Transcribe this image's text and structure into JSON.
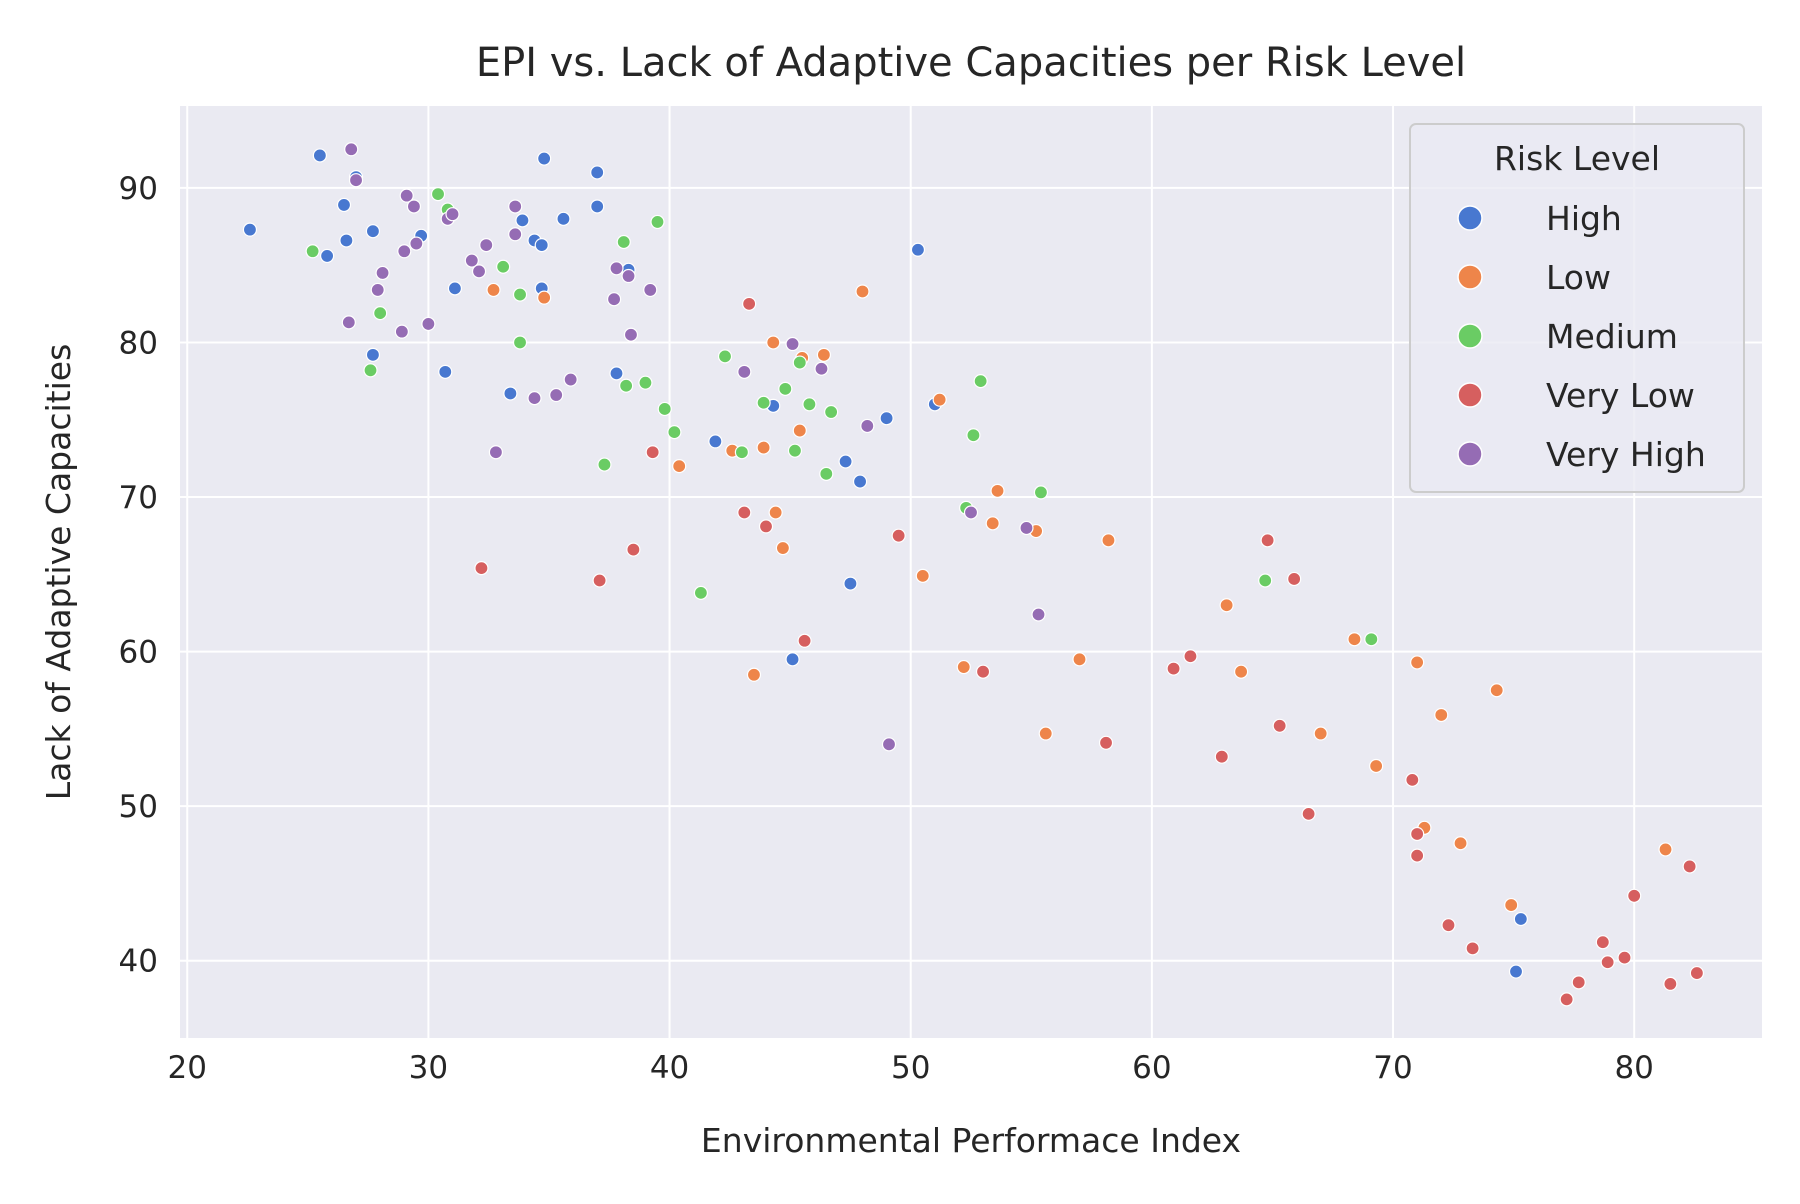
{
  "chart_data": {
    "type": "scatter",
    "title": "EPI vs. Lack of Adaptive Capacities per Risk Level",
    "xlabel": "Environmental Performace Index",
    "ylabel": "Lack of Adaptive Capacities",
    "xlim": [
      19.7,
      85.3
    ],
    "ylim": [
      35,
      95.3
    ],
    "xticks": [
      20,
      30,
      40,
      50,
      60,
      70,
      80
    ],
    "yticks": [
      40,
      50,
      60,
      70,
      80,
      90
    ],
    "grid": true,
    "legend": {
      "title": "Risk Level",
      "position": "top-right"
    },
    "series": [
      {
        "name": "High",
        "color": "#4878d0",
        "points": [
          [
            22.6,
            87.3
          ],
          [
            25.5,
            92.1
          ],
          [
            25.8,
            85.6
          ],
          [
            26.5,
            88.9
          ],
          [
            26.6,
            86.6
          ],
          [
            27.0,
            90.7
          ],
          [
            27.7,
            87.2
          ],
          [
            27.7,
            79.2
          ],
          [
            29.7,
            86.9
          ],
          [
            30.7,
            78.1
          ],
          [
            31.1,
            83.5
          ],
          [
            33.4,
            76.7
          ],
          [
            33.9,
            87.9
          ],
          [
            34.4,
            86.6
          ],
          [
            34.7,
            86.3
          ],
          [
            34.7,
            83.5
          ],
          [
            34.8,
            91.9
          ],
          [
            35.6,
            88.0
          ],
          [
            37.0,
            91.0
          ],
          [
            37.0,
            88.8
          ],
          [
            37.8,
            78.0
          ],
          [
            38.3,
            84.7
          ],
          [
            41.9,
            73.6
          ],
          [
            44.3,
            75.9
          ],
          [
            45.1,
            59.5
          ],
          [
            47.3,
            72.3
          ],
          [
            47.5,
            64.4
          ],
          [
            47.9,
            71.0
          ],
          [
            49.0,
            75.1
          ],
          [
            50.3,
            86.0
          ],
          [
            51.0,
            76.0
          ],
          [
            75.1,
            39.3
          ],
          [
            75.3,
            42.7
          ]
        ]
      },
      {
        "name": "Low",
        "color": "#ee854a",
        "points": [
          [
            32.7,
            83.4
          ],
          [
            34.8,
            82.9
          ],
          [
            40.4,
            72.0
          ],
          [
            42.6,
            73.0
          ],
          [
            43.5,
            58.5
          ],
          [
            43.9,
            73.2
          ],
          [
            44.3,
            80.0
          ],
          [
            44.4,
            69.0
          ],
          [
            44.7,
            66.7
          ],
          [
            45.4,
            74.3
          ],
          [
            45.5,
            79.0
          ],
          [
            46.4,
            79.2
          ],
          [
            48.0,
            83.3
          ],
          [
            50.5,
            64.9
          ],
          [
            51.2,
            76.3
          ],
          [
            52.2,
            59.0
          ],
          [
            53.4,
            68.3
          ],
          [
            53.6,
            70.4
          ],
          [
            55.2,
            67.8
          ],
          [
            55.6,
            54.7
          ],
          [
            57.0,
            59.5
          ],
          [
            58.2,
            67.2
          ],
          [
            63.1,
            63.0
          ],
          [
            63.7,
            58.7
          ],
          [
            67.0,
            54.7
          ],
          [
            68.4,
            60.8
          ],
          [
            69.3,
            52.6
          ],
          [
            71.0,
            59.3
          ],
          [
            71.3,
            48.6
          ],
          [
            72.0,
            55.9
          ],
          [
            72.8,
            47.6
          ],
          [
            74.3,
            57.5
          ],
          [
            74.9,
            43.6
          ],
          [
            81.3,
            47.2
          ]
        ]
      },
      {
        "name": "Medium",
        "color": "#6acc64",
        "points": [
          [
            25.2,
            85.9
          ],
          [
            27.6,
            78.2
          ],
          [
            28.0,
            81.9
          ],
          [
            30.4,
            89.6
          ],
          [
            30.8,
            88.6
          ],
          [
            33.1,
            84.9
          ],
          [
            33.8,
            80.0
          ],
          [
            33.8,
            83.1
          ],
          [
            37.3,
            72.1
          ],
          [
            38.1,
            86.5
          ],
          [
            38.2,
            77.2
          ],
          [
            39.0,
            77.4
          ],
          [
            39.5,
            87.8
          ],
          [
            39.8,
            75.7
          ],
          [
            40.2,
            74.2
          ],
          [
            41.3,
            63.8
          ],
          [
            42.3,
            79.1
          ],
          [
            43.0,
            72.9
          ],
          [
            43.9,
            76.1
          ],
          [
            44.8,
            77.0
          ],
          [
            45.2,
            73.0
          ],
          [
            45.4,
            78.7
          ],
          [
            45.8,
            76.0
          ],
          [
            46.5,
            71.5
          ],
          [
            46.7,
            75.5
          ],
          [
            52.3,
            69.3
          ],
          [
            52.6,
            74.0
          ],
          [
            52.9,
            77.5
          ],
          [
            55.4,
            70.3
          ],
          [
            64.7,
            64.6
          ],
          [
            69.1,
            60.8
          ]
        ]
      },
      {
        "name": "Very Low",
        "color": "#d65f5f",
        "points": [
          [
            32.2,
            65.4
          ],
          [
            37.1,
            64.6
          ],
          [
            38.5,
            66.6
          ],
          [
            39.3,
            72.9
          ],
          [
            43.1,
            69.0
          ],
          [
            43.3,
            82.5
          ],
          [
            44.0,
            68.1
          ],
          [
            45.6,
            60.7
          ],
          [
            49.5,
            67.5
          ],
          [
            53.0,
            58.7
          ],
          [
            58.1,
            54.1
          ],
          [
            60.9,
            58.9
          ],
          [
            61.6,
            59.7
          ],
          [
            62.9,
            53.2
          ],
          [
            64.8,
            67.2
          ],
          [
            65.3,
            55.2
          ],
          [
            65.9,
            64.7
          ],
          [
            66.5,
            49.5
          ],
          [
            70.8,
            51.7
          ],
          [
            71.0,
            48.2
          ],
          [
            71.0,
            46.8
          ],
          [
            72.3,
            42.3
          ],
          [
            73.3,
            40.8
          ],
          [
            77.2,
            37.5
          ],
          [
            77.7,
            38.6
          ],
          [
            78.7,
            41.2
          ],
          [
            78.9,
            39.9
          ],
          [
            79.6,
            40.2
          ],
          [
            80.0,
            44.2
          ],
          [
            81.5,
            38.5
          ],
          [
            82.3,
            46.1
          ],
          [
            82.6,
            39.2
          ]
        ]
      },
      {
        "name": "Very High",
        "color": "#956cb4",
        "points": [
          [
            26.7,
            81.3
          ],
          [
            26.8,
            92.5
          ],
          [
            27.0,
            90.5
          ],
          [
            27.9,
            83.4
          ],
          [
            28.1,
            84.5
          ],
          [
            28.9,
            80.7
          ],
          [
            29.0,
            85.9
          ],
          [
            29.1,
            89.5
          ],
          [
            29.4,
            88.8
          ],
          [
            29.5,
            86.4
          ],
          [
            30.0,
            81.2
          ],
          [
            30.8,
            88.0
          ],
          [
            31.0,
            88.3
          ],
          [
            31.8,
            85.3
          ],
          [
            32.1,
            84.6
          ],
          [
            32.4,
            86.3
          ],
          [
            32.8,
            72.9
          ],
          [
            33.6,
            88.8
          ],
          [
            33.6,
            87.0
          ],
          [
            34.4,
            76.4
          ],
          [
            35.3,
            76.6
          ],
          [
            35.9,
            77.6
          ],
          [
            37.7,
            82.8
          ],
          [
            37.8,
            84.8
          ],
          [
            38.3,
            84.3
          ],
          [
            38.4,
            80.5
          ],
          [
            39.2,
            83.4
          ],
          [
            43.1,
            78.1
          ],
          [
            45.1,
            79.9
          ],
          [
            46.3,
            78.3
          ],
          [
            48.2,
            74.6
          ],
          [
            49.1,
            54.0
          ],
          [
            52.5,
            69.0
          ],
          [
            54.8,
            68.0
          ],
          [
            55.3,
            62.4
          ]
        ]
      }
    ]
  }
}
